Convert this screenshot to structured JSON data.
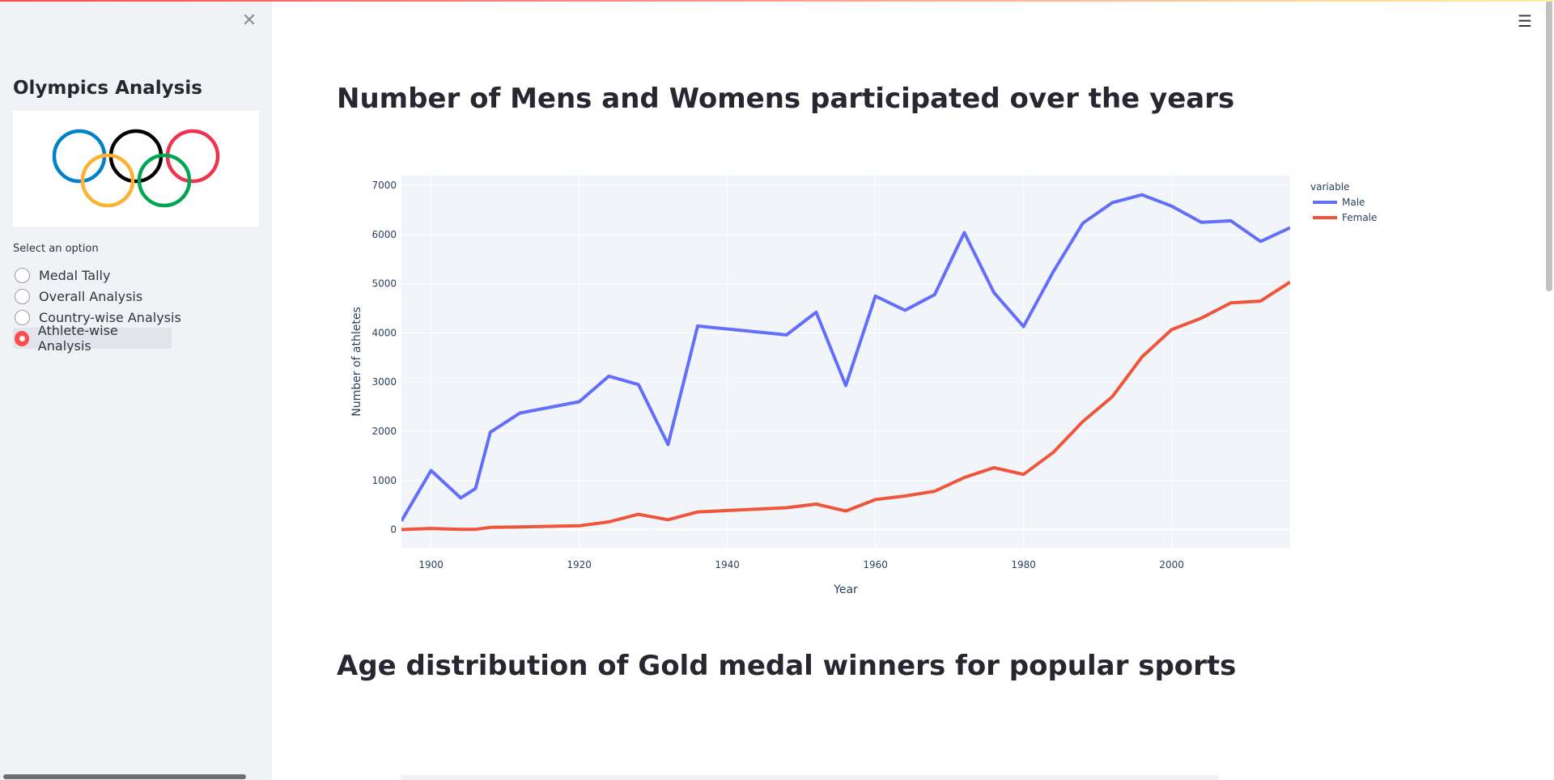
{
  "sidebar": {
    "title": "Olympics Analysis",
    "logo_icon": "olympic-rings-icon",
    "select_label": "Select an option",
    "options": [
      "Medal Tally",
      "Overall Analysis",
      "Country-wise Analysis",
      "Athlete-wise Analysis"
    ],
    "selected_option": "Athlete-wise Analysis",
    "accent_color": "#ff4b4b",
    "close_icon": "close-icon"
  },
  "header": {
    "menu_icon": "hamburger-menu-icon"
  },
  "main": {
    "section1_title": "Number of Mens and Womens participated over the years",
    "section2_title": "Age distribution of Gold medal winners for popular sports"
  },
  "chart_data": {
    "type": "line",
    "title": "",
    "xlabel": "Year",
    "ylabel": "Number of athletes",
    "xlim": [
      1896,
      2016
    ],
    "ylim": [
      -370,
      7200
    ],
    "xticks": [
      1900,
      1920,
      1940,
      1960,
      1980,
      2000
    ],
    "yticks": [
      0,
      1000,
      2000,
      3000,
      4000,
      5000,
      6000,
      7000
    ],
    "grid": true,
    "legend_title": "variable",
    "legend_position": "top-right",
    "x": [
      1896,
      1900,
      1904,
      1906,
      1908,
      1912,
      1920,
      1924,
      1928,
      1932,
      1936,
      1948,
      1952,
      1956,
      1960,
      1964,
      1968,
      1972,
      1976,
      1980,
      1984,
      1988,
      1992,
      1996,
      2000,
      2004,
      2008,
      2012,
      2016
    ],
    "series": [
      {
        "name": "Male",
        "color": "#636efa",
        "values": [
          176,
          1201,
          644,
          835,
          1980,
          2370,
          2600,
          3120,
          2950,
          1730,
          4140,
          3960,
          4420,
          2930,
          4750,
          4460,
          4780,
          6040,
          4820,
          4130,
          5240,
          6230,
          6650,
          6810,
          6580,
          6250,
          6280,
          5860,
          6140
        ]
      },
      {
        "name": "Female",
        "color": "#ef553b",
        "values": [
          0,
          23,
          6,
          6,
          44,
          53,
          78,
          156,
          312,
          201,
          359,
          444,
          519,
          377,
          610,
          683,
          781,
          1058,
          1260,
          1123,
          1569,
          2197,
          2705,
          3512,
          4066,
          4301,
          4611,
          4647,
          5034
        ]
      }
    ]
  }
}
